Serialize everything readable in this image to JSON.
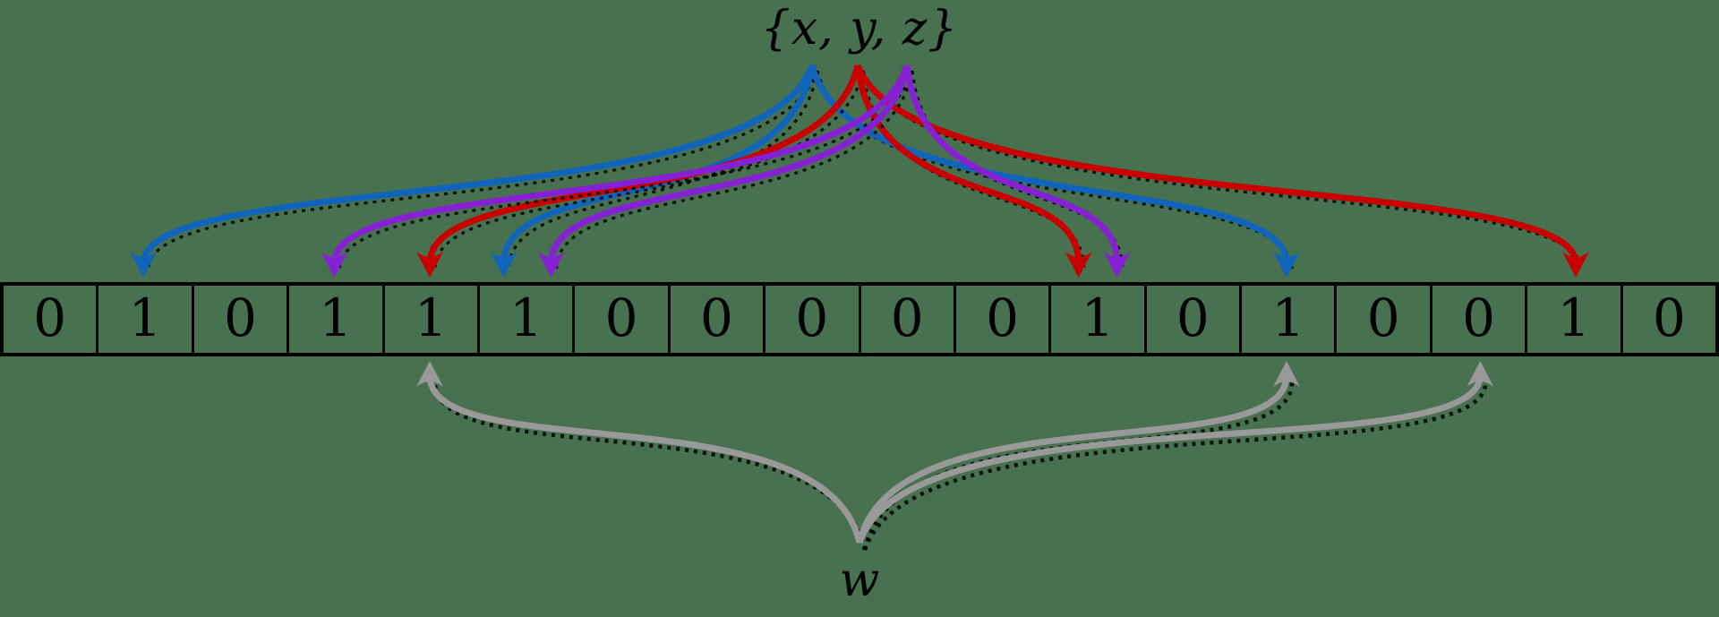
{
  "diagram": {
    "set_label": "{x, y, z}",
    "query_label": "w"
  },
  "chart_data": {
    "type": "bloom-filter-diagram",
    "array_size": 18,
    "hash_count": 3,
    "bit_array": [
      0,
      1,
      0,
      1,
      1,
      1,
      0,
      0,
      0,
      0,
      0,
      1,
      0,
      1,
      0,
      0,
      1,
      0
    ],
    "set_elements": [
      {
        "name": "x",
        "color": "#1065bb",
        "hash_positions": [
          1,
          5,
          13
        ]
      },
      {
        "name": "y",
        "color": "#c80000",
        "hash_positions": [
          4,
          11,
          16
        ]
      },
      {
        "name": "z",
        "color": "#8621d3",
        "hash_positions": [
          3,
          5,
          11
        ]
      }
    ],
    "query_element": {
      "name": "w",
      "color": "#999999",
      "hash_positions": [
        4,
        13,
        15
      ]
    }
  },
  "colors": {
    "background": "#47714f",
    "ink": "#000000",
    "cell_border": "#000000",
    "shadow": "#000000"
  }
}
